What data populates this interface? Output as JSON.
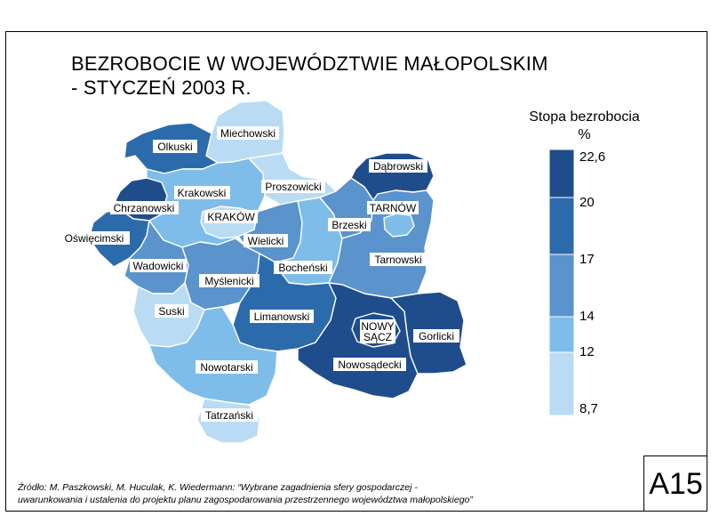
{
  "title": {
    "line1": "BEZROBOCIE W WOJEWÓDZTWIE MAŁOPOLSKIM",
    "line2": "- STYCZEŃ 2003 R."
  },
  "legend": {
    "title": "Stopa bezrobocia",
    "unit": "%",
    "ticks": [
      "22,6",
      "20",
      "17",
      "14",
      "12",
      "8,7"
    ],
    "classes": [
      {
        "from": "20",
        "to": "22,6",
        "color": "#1f4d8c"
      },
      {
        "from": "17",
        "to": "20",
        "color": "#2c6bab"
      },
      {
        "from": "14",
        "to": "17",
        "color": "#5b93cc"
      },
      {
        "from": "12",
        "to": "14",
        "color": "#7ebde9"
      },
      {
        "from": "8,7",
        "to": "12",
        "color": "#b9dcf4"
      }
    ]
  },
  "regions": [
    {
      "name": "Miechowski",
      "class": 4
    },
    {
      "name": "Olkuski",
      "class": 1
    },
    {
      "name": "Proszowicki",
      "class": 4
    },
    {
      "name": "Dąbrowski",
      "class": 0
    },
    {
      "name": "Krakowski",
      "class": 3
    },
    {
      "name": "Chrzanowski",
      "class": 0
    },
    {
      "name": "KRAKÓW",
      "class": 4
    },
    {
      "name": "TARNÓW",
      "class": 3
    },
    {
      "name": "Oświęcimski",
      "class": 1
    },
    {
      "name": "Wielicki",
      "class": 2
    },
    {
      "name": "Brzeski",
      "class": 2
    },
    {
      "name": "Bocheński",
      "class": 3
    },
    {
      "name": "Wadowicki",
      "class": 2
    },
    {
      "name": "Tarnowski",
      "class": 2
    },
    {
      "name": "Myślenicki",
      "class": 2
    },
    {
      "name": "Suski",
      "class": 3
    },
    {
      "name": "Limanowski",
      "class": 1
    },
    {
      "name": "NOWY SĄCZ",
      "class": 0
    },
    {
      "name": "Gorlicki",
      "class": 0
    },
    {
      "name": "Nowosądecki",
      "class": 0
    },
    {
      "name": "Nowotarski",
      "class": 3
    },
    {
      "name": "Tatrzański",
      "class": 4
    }
  ],
  "source": {
    "line1": "Źródło: M. Paszkowski, M. Huculak, K. Wiedermann: “Wybrane zagadnienia sfery gospodarczej -",
    "line2": "uwarunkowania i ustalenia do projektu planu zagospodarowania przestrzennego województwa małopolskiego”"
  },
  "badge": "A15"
}
